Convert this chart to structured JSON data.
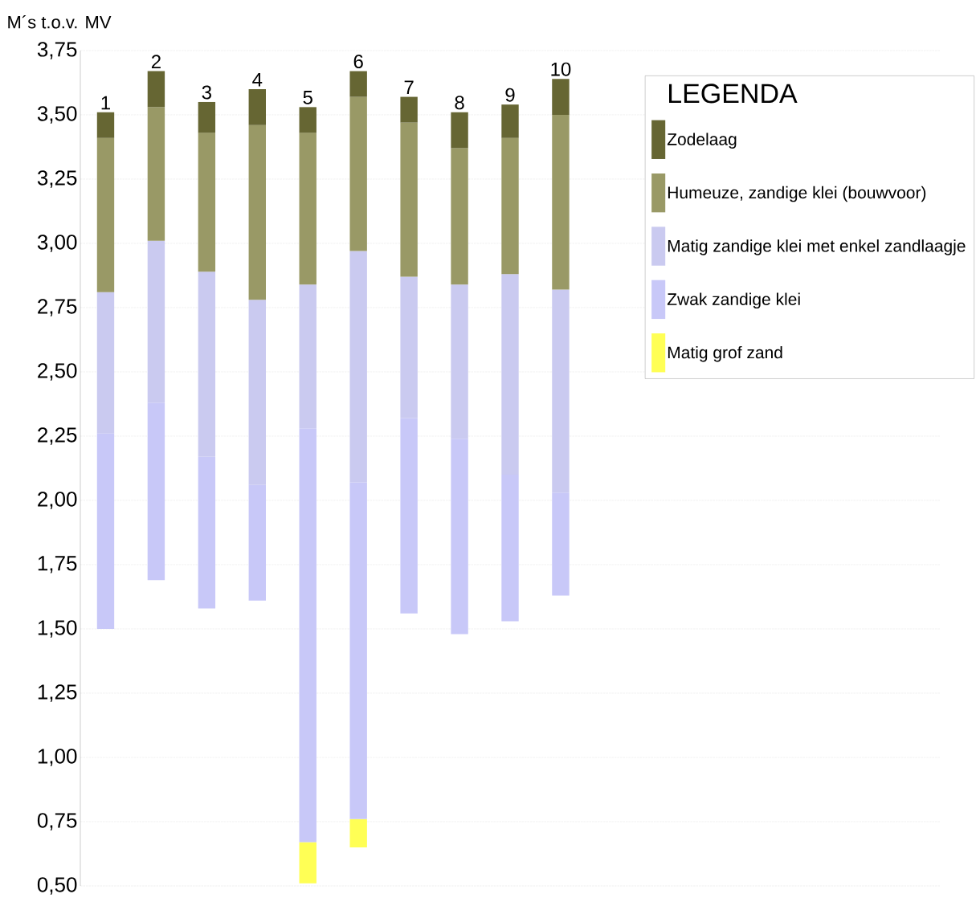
{
  "chart_data": {
    "type": "bar",
    "ylabel": "M´s t.o.v. MV",
    "legend_title": "LEGENDA",
    "legend": "top right",
    "grid": "y",
    "categories": [
      "1",
      "2",
      "3",
      "4",
      "5",
      "6",
      "7",
      "8",
      "9",
      "10"
    ],
    "series": [
      {
        "name": "Matig grof  zand",
        "color": "#ffff55",
        "base": [
          null,
          null,
          null,
          null,
          0.51,
          0.65,
          null,
          null,
          null,
          null
        ],
        "values": [
          null,
          null,
          null,
          null,
          0.16,
          0.11,
          null,
          null,
          null,
          null
        ]
      },
      {
        "name": "Zwak zandige klei",
        "color": "#c8c8f8",
        "base": [
          1.5,
          1.69,
          1.58,
          1.61,
          0.67,
          0.76,
          1.56,
          1.48,
          1.53,
          1.63
        ],
        "values": [
          0.76,
          0.69,
          0.59,
          0.45,
          1.61,
          1.31,
          0.76,
          0.76,
          0.57,
          0.4
        ]
      },
      {
        "name": "Matig zandige klei met enkel zandlaagje",
        "color": "#cacaf0",
        "base": [
          2.26,
          2.38,
          2.17,
          2.06,
          2.28,
          2.07,
          2.32,
          2.24,
          2.1,
          2.03
        ],
        "values": [
          0.55,
          0.63,
          0.72,
          0.72,
          0.56,
          0.9,
          0.55,
          0.6,
          0.78,
          0.79
        ]
      },
      {
        "name": "Humeuze, zandige klei (bouwvoor)",
        "color": "#999966",
        "base": [
          2.81,
          3.01,
          2.89,
          2.78,
          2.84,
          2.97,
          2.87,
          2.84,
          2.88,
          2.82
        ],
        "values": [
          0.6,
          0.52,
          0.54,
          0.68,
          0.59,
          0.6,
          0.6,
          0.53,
          0.53,
          0.68
        ]
      },
      {
        "name": "Zodelaag",
        "color": "#666633",
        "base": [
          3.41,
          3.53,
          3.43,
          3.46,
          3.43,
          3.57,
          3.47,
          3.37,
          3.41,
          3.5
        ],
        "values": [
          0.1,
          0.14,
          0.12,
          0.14,
          0.1,
          0.1,
          0.1,
          0.14,
          0.13,
          0.14
        ]
      }
    ],
    "ylim": [
      0.5,
      3.75
    ],
    "yticks": [
      {
        "value": 0.5,
        "label": "0,50"
      },
      {
        "value": 0.75,
        "label": "0,75"
      },
      {
        "value": 1.0,
        "label": "1,00"
      },
      {
        "value": 1.25,
        "label": "1,25"
      },
      {
        "value": 1.5,
        "label": "1,50"
      },
      {
        "value": 1.75,
        "label": "1,75"
      },
      {
        "value": 2.0,
        "label": "2,00"
      },
      {
        "value": 2.25,
        "label": "2,25"
      },
      {
        "value": 2.5,
        "label": "2,50"
      },
      {
        "value": 2.75,
        "label": "2,75"
      },
      {
        "value": 3.0,
        "label": "3,00"
      },
      {
        "value": 3.25,
        "label": "3,25"
      },
      {
        "value": 3.5,
        "label": "3,50"
      },
      {
        "value": 3.75,
        "label": "3,75"
      }
    ]
  }
}
